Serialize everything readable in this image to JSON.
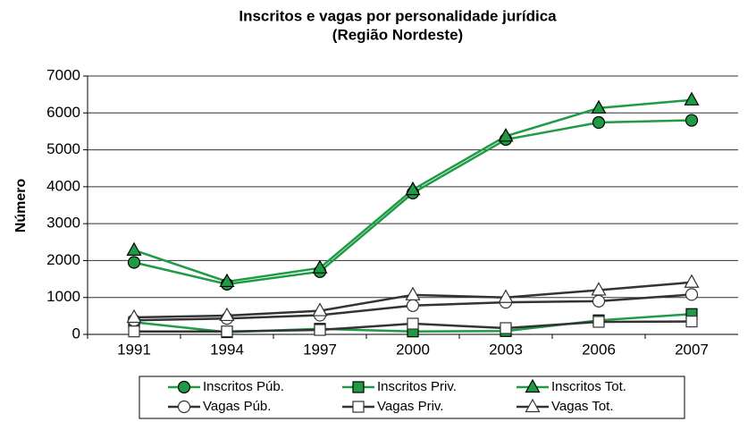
{
  "chart_data": {
    "type": "line",
    "title": "Inscritos e vagas por personalidade jurídica",
    "subtitle": "(Região Nordeste)",
    "ylabel": "Número",
    "categories": [
      "1991",
      "1994",
      "1997",
      "2000",
      "2003",
      "2006",
      "2007"
    ],
    "series": [
      {
        "name": "Inscritos Púb.",
        "color": "#1f9a45",
        "marker": "circle",
        "fill": "#1f9a45",
        "values": [
          1950,
          1360,
          1700,
          3830,
          5280,
          5740,
          5800
        ]
      },
      {
        "name": "Inscritos Priv.",
        "color": "#1f9a45",
        "marker": "square",
        "fill": "#1f9a45",
        "values": [
          330,
          60,
          150,
          80,
          90,
          380,
          550
        ]
      },
      {
        "name": "Inscritos Tot.",
        "color": "#1f9a45",
        "marker": "triangle",
        "fill": "#1f9a45",
        "values": [
          2280,
          1430,
          1800,
          3920,
          5370,
          6130,
          6350
        ]
      },
      {
        "name": "Vagas Púb.",
        "color": "#333333",
        "marker": "circle",
        "fill": "#ffffff",
        "values": [
          380,
          430,
          520,
          780,
          870,
          900,
          1080
        ]
      },
      {
        "name": "Vagas Priv.",
        "color": "#333333",
        "marker": "square",
        "fill": "#ffffff",
        "values": [
          80,
          80,
          120,
          290,
          170,
          340,
          350
        ]
      },
      {
        "name": "Vagas Tot.",
        "color": "#333333",
        "marker": "triangle",
        "fill": "#ffffff",
        "values": [
          460,
          510,
          640,
          1070,
          1000,
          1200,
          1410
        ]
      }
    ],
    "ylim": [
      0,
      7000
    ],
    "yticks": [
      0,
      1000,
      2000,
      3000,
      4000,
      5000,
      6000,
      7000
    ],
    "grid": true,
    "legend": "bottom"
  }
}
